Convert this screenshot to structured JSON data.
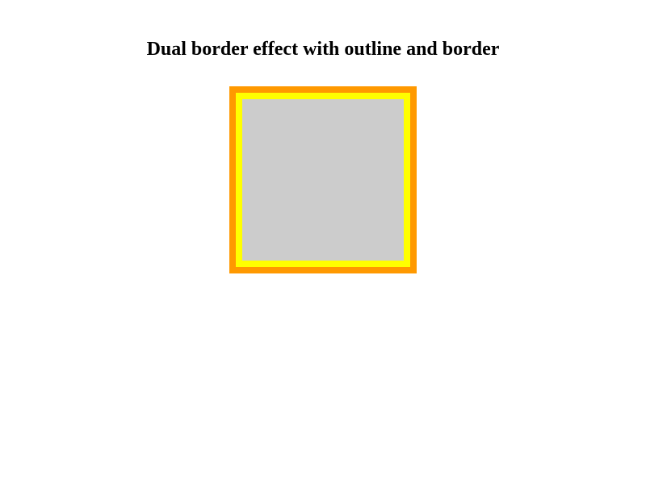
{
  "page": {
    "title": "Dual border effect with outline and border"
  },
  "demo_box": {
    "fill_color": "#cccccc",
    "border_color": "#ffff00",
    "outline_color": "#ff9900"
  }
}
